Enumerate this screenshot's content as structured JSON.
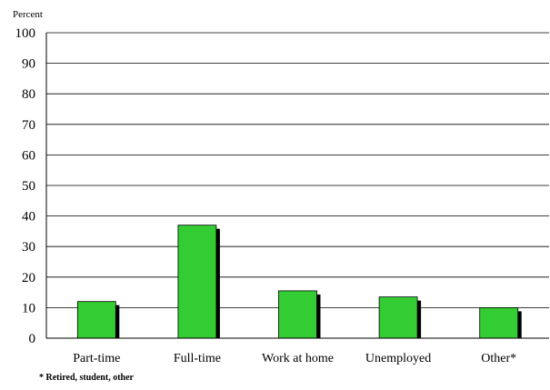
{
  "chart_data": {
    "type": "bar",
    "ylabel": "Percent",
    "categories": [
      "Part-time",
      "Full-time",
      "Work at home",
      "Unemployed",
      "Other*"
    ],
    "values": [
      12,
      37,
      15.5,
      13.5,
      10
    ],
    "ylim": [
      0,
      100
    ],
    "yticks": [
      0,
      10,
      20,
      30,
      40,
      50,
      60,
      70,
      80,
      90,
      100
    ],
    "ytick_labels": [
      "0",
      "10",
      "20",
      "30",
      "40",
      "50",
      "60",
      "70",
      "80",
      "90",
      "100"
    ],
    "grid": true,
    "legend": "none",
    "footnote": "* Retired, student, other",
    "colors": {
      "bar": "#33cc33",
      "bar_outline": "#000000",
      "bar_shadow": "#000000",
      "grid": "#000000",
      "axis": "#000000"
    }
  }
}
